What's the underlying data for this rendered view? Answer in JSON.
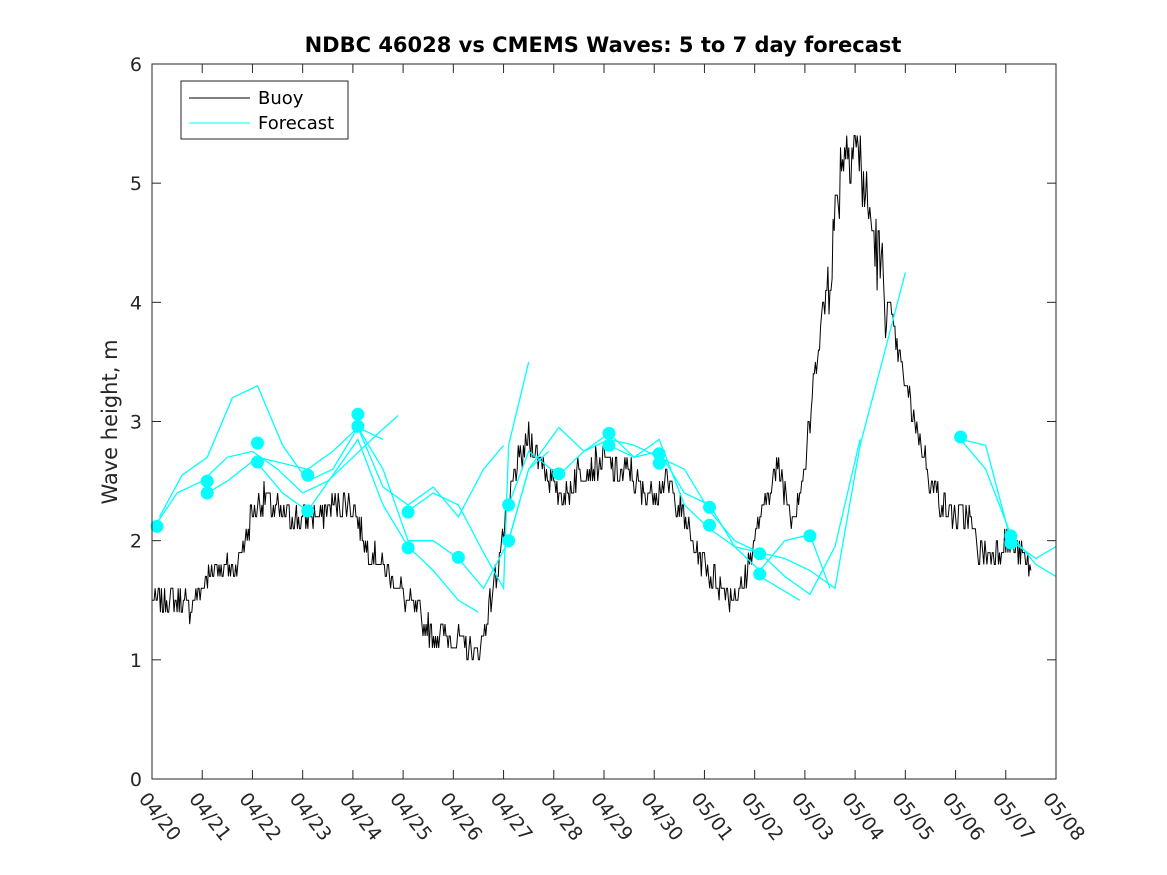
{
  "chart_data": {
    "type": "line",
    "title": "NDBC 46028 vs CMEMS Waves: 5 to 7 day forecast",
    "xlabel": "",
    "ylabel": "Wave height, m",
    "ylim": [
      0,
      6
    ],
    "xlim": [
      "04/20",
      "05/08"
    ],
    "yticks": [
      "0",
      "1",
      "2",
      "3",
      "4",
      "5",
      "6"
    ],
    "xticks": [
      "04/20",
      "04/21",
      "04/22",
      "04/23",
      "04/24",
      "04/25",
      "04/26",
      "04/27",
      "04/28",
      "04/29",
      "04/30",
      "05/01",
      "05/02",
      "05/03",
      "05/04",
      "05/05",
      "05/06",
      "05/07",
      "05/08"
    ],
    "grid": false,
    "legend_position": "top-left",
    "colors": {
      "buoy": "#000000",
      "forecast": "#00ffff"
    },
    "series": [
      {
        "name": "Buoy",
        "x_day": [
          0,
          0.25,
          0.5,
          0.75,
          1,
          1.25,
          1.5,
          1.75,
          2,
          2.25,
          2.5,
          2.75,
          3,
          3.25,
          3.5,
          3.75,
          4,
          4.25,
          4.5,
          4.75,
          5,
          5.25,
          5.5,
          5.75,
          6,
          6.25,
          6.5,
          6.75,
          7,
          7.25,
          7.5,
          7.75,
          8,
          8.25,
          8.5,
          8.75,
          9,
          9.25,
          9.5,
          9.75,
          10,
          10.25,
          10.5,
          10.75,
          11,
          11.25,
          11.5,
          11.75,
          12,
          12.25,
          12.5,
          12.75,
          13,
          13.25,
          13.5,
          13.75,
          14,
          14.25,
          14.5,
          14.75,
          15,
          15.25,
          15.5,
          15.75,
          16,
          16.25,
          16.5,
          16.75,
          17,
          17.25,
          17.5
        ],
        "values": [
          1.5,
          1.5,
          1.5,
          1.45,
          1.6,
          1.8,
          1.75,
          1.85,
          2.25,
          2.35,
          2.25,
          2.2,
          2.2,
          2.2,
          2.25,
          2.3,
          2.3,
          1.95,
          1.85,
          1.7,
          1.55,
          1.4,
          1.25,
          1.2,
          1.2,
          1.1,
          1.05,
          1.5,
          2.05,
          2.6,
          2.85,
          2.7,
          2.45,
          2.35,
          2.6,
          2.6,
          2.7,
          2.55,
          2.6,
          2.4,
          2.4,
          2.5,
          2.3,
          2.0,
          1.8,
          1.65,
          1.55,
          1.6,
          2.0,
          2.4,
          2.6,
          2.2,
          2.6,
          3.6,
          4.3,
          5.3,
          5.4,
          4.8,
          4.3,
          3.8,
          3.3,
          2.9,
          2.5,
          2.3,
          2.2,
          2.2,
          1.9,
          1.9,
          2.0,
          1.9,
          1.75
        ]
      },
      {
        "name": "Forecast",
        "segments": [
          {
            "x_day": [
              0.1,
              0.5,
              1,
              1.5,
              2,
              2.5,
              3,
              3.5,
              4,
              4.5,
              4.9
            ],
            "values": [
              2.15,
              2.4,
              2.5,
              2.7,
              2.75,
              2.6,
              2.4,
              2.5,
              2.7,
              2.9,
              3.05
            ]
          },
          {
            "x_day": [
              0.15,
              0.6,
              1.1,
              1.6,
              2.1,
              2.6,
              3.1,
              3.6,
              4.1,
              4.6
            ],
            "values": [
              2.2,
              2.55,
              2.7,
              3.2,
              3.3,
              2.8,
              2.5,
              2.6,
              2.95,
              2.85
            ]
          },
          {
            "x_day": [
              1.1,
              1.5,
              2.1,
              2.6,
              3.1,
              3.6,
              4.1,
              4.6,
              5.1,
              5.6,
              6.1,
              6.6,
              7.0
            ],
            "values": [
              2.4,
              2.5,
              2.7,
              2.65,
              2.6,
              2.75,
              2.95,
              2.45,
              2.3,
              2.45,
              2.2,
              2.6,
              2.8
            ]
          },
          {
            "x_day": [
              2.1,
              2.6,
              3.1,
              3.6,
              4.1,
              4.6,
              5.1,
              5.6,
              6.1,
              6.5
            ],
            "values": [
              2.65,
              2.4,
              2.25,
              2.55,
              2.85,
              2.3,
              1.95,
              1.75,
              1.5,
              1.4
            ]
          },
          {
            "x_day": [
              4.1,
              4.6,
              5.1,
              5.6,
              6.1,
              6.6,
              7.1,
              7.5,
              7.9
            ],
            "values": [
              2.95,
              2.6,
              2.0,
              2.0,
              1.85,
              1.6,
              2.0,
              2.6,
              2.75
            ]
          },
          {
            "x_day": [
              5.1,
              5.6,
              6.1,
              6.6,
              7.0,
              7.1,
              7.5
            ],
            "values": [
              2.25,
              2.4,
              2.3,
              1.9,
              1.6,
              2.8,
              3.5
            ]
          },
          {
            "x_day": [
              7.1,
              7.5,
              8.1,
              8.6,
              9.1,
              9.6,
              10.1,
              10.6,
              11.1,
              11.6,
              12.1,
              12.6,
              13.1,
              13.6,
              14.1,
              14.6,
              15.0
            ],
            "values": [
              2.3,
              2.75,
              2.55,
              2.75,
              2.85,
              2.8,
              2.7,
              2.6,
              2.25,
              2.0,
              1.9,
              1.85,
              1.75,
              1.6,
              2.8,
              3.6,
              4.25
            ]
          },
          {
            "x_day": [
              7.1,
              7.5,
              8.1,
              8.6,
              9.1,
              9.6,
              10.1,
              10.6,
              11.1,
              11.6,
              12.1,
              12.6,
              13.1,
              13.5
            ],
            "values": [
              2.0,
              2.6,
              2.95,
              2.75,
              2.9,
              2.7,
              2.85,
              2.3,
              2.1,
              1.95,
              1.75,
              2.0,
              2.05,
              1.6
            ]
          },
          {
            "x_day": [
              9.1,
              9.6,
              10.1,
              10.6,
              11.1,
              11.6,
              12.1,
              12.6,
              13.1,
              13.6,
              14.1
            ],
            "values": [
              2.8,
              2.7,
              2.75,
              2.4,
              2.3,
              1.95,
              1.9,
              1.7,
              1.55,
              1.95,
              2.85
            ]
          },
          {
            "x_day": [
              12.1,
              12.5,
              12.9
            ],
            "values": [
              1.7,
              1.6,
              1.5
            ]
          },
          {
            "x_day": [
              16.1,
              16.6,
              17.1,
              17.6,
              18.0
            ],
            "values": [
              2.85,
              2.6,
              2.05,
              1.8,
              1.7
            ]
          },
          {
            "x_day": [
              16.1,
              16.6,
              17.1,
              17.6,
              18.0
            ],
            "values": [
              2.85,
              2.8,
              2.0,
              1.85,
              1.95
            ]
          }
        ],
        "markers_x_day": [
          0.1,
          1.1,
          1.1,
          2.1,
          2.1,
          3.1,
          3.1,
          4.1,
          4.1,
          5.1,
          5.1,
          6.1,
          7.1,
          7.1,
          8.1,
          9.1,
          9.1,
          10.1,
          10.1,
          11.1,
          11.1,
          12.1,
          12.1,
          13.1,
          16.1,
          17.1,
          17.1
        ],
        "markers_values": [
          2.12,
          2.4,
          2.5,
          2.82,
          2.66,
          2.55,
          2.25,
          3.06,
          2.96,
          2.24,
          1.94,
          1.86,
          2.3,
          2.0,
          2.56,
          2.9,
          2.8,
          2.73,
          2.65,
          2.28,
          2.13,
          1.89,
          1.72,
          2.04,
          2.87,
          2.04,
          1.98
        ]
      }
    ]
  }
}
